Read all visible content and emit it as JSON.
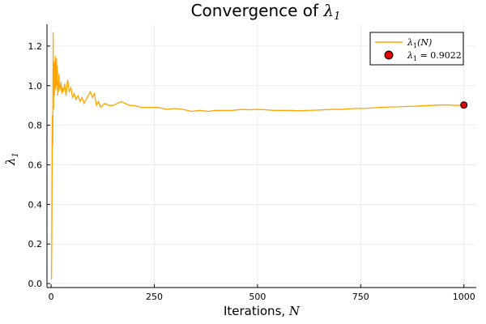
{
  "chart_data": {
    "type": "line",
    "title": "Convergence of λ₁",
    "title_text": "Convergence of ",
    "title_math": "λ",
    "title_sub": "1",
    "xlabel": "Iterations, N",
    "xlabel_text": "Iterations, ",
    "xlabel_math": "N",
    "ylabel": "λ₁",
    "ylabel_math": "λ",
    "ylabel_sub": "1",
    "xlim": [
      -10,
      1030
    ],
    "ylim": [
      -0.02,
      1.31
    ],
    "xticks": [
      0,
      250,
      500,
      750,
      1000
    ],
    "xtick_labels": [
      "0",
      "250",
      "500",
      "750",
      "1000"
    ],
    "yticks": [
      0.0,
      0.2,
      0.4,
      0.6,
      0.8,
      1.0,
      1.2
    ],
    "ytick_labels": [
      "0.0",
      "0.2",
      "0.4",
      "0.6",
      "0.8",
      "1.0",
      "1.2"
    ],
    "grid": true,
    "legend_position": "top-right",
    "series": [
      {
        "name": "λ₁(N)",
        "color": "#FFA500",
        "x": [
          1,
          2,
          3,
          4,
          5,
          6,
          7,
          8,
          9,
          10,
          11,
          12,
          13,
          14,
          15,
          16,
          17,
          18,
          19,
          20,
          22,
          24,
          26,
          28,
          30,
          33,
          36,
          40,
          44,
          48,
          52,
          56,
          60,
          65,
          70,
          75,
          80,
          85,
          90,
          95,
          100,
          105,
          110,
          115,
          120,
          130,
          140,
          150,
          160,
          170,
          180,
          190,
          200,
          220,
          240,
          260,
          280,
          300,
          320,
          340,
          360,
          380,
          400,
          420,
          440,
          460,
          480,
          500,
          520,
          540,
          560,
          580,
          600,
          620,
          640,
          660,
          680,
          700,
          720,
          740,
          760,
          780,
          800,
          820,
          840,
          860,
          880,
          900,
          920,
          940,
          960,
          980,
          1000
        ],
        "y": [
          0.02,
          0.35,
          0.85,
          0.7,
          1.27,
          0.88,
          1.12,
          0.95,
          1.05,
          1.15,
          0.98,
          1.08,
          1.14,
          1.0,
          1.1,
          0.95,
          1.02,
          0.97,
          1.06,
          1.0,
          0.98,
          1.02,
          0.96,
          0.99,
          0.97,
          1.01,
          0.95,
          1.03,
          0.97,
          0.99,
          0.94,
          0.96,
          0.93,
          0.95,
          0.92,
          0.94,
          0.91,
          0.93,
          0.95,
          0.97,
          0.94,
          0.96,
          0.9,
          0.92,
          0.89,
          0.91,
          0.9,
          0.9,
          0.91,
          0.92,
          0.91,
          0.9,
          0.9,
          0.89,
          0.89,
          0.89,
          0.88,
          0.885,
          0.88,
          0.87,
          0.875,
          0.87,
          0.875,
          0.875,
          0.875,
          0.88,
          0.878,
          0.88,
          0.878,
          0.875,
          0.875,
          0.875,
          0.873,
          0.875,
          0.876,
          0.878,
          0.88,
          0.88,
          0.883,
          0.885,
          0.885,
          0.888,
          0.89,
          0.892,
          0.893,
          0.895,
          0.896,
          0.898,
          0.9,
          0.902,
          0.903,
          0.9,
          0.9022
        ]
      }
    ],
    "points": [
      {
        "name": "λ₁ = 0.9022",
        "x": 1000,
        "y": 0.9022,
        "color": "#E00000"
      }
    ],
    "legend": {
      "line_label_math": "λ",
      "line_label_sub": "1",
      "line_label_rest": "(N)",
      "point_label_math": "λ",
      "point_label_sub": "1",
      "point_label_rest": " = 0.9022"
    }
  }
}
